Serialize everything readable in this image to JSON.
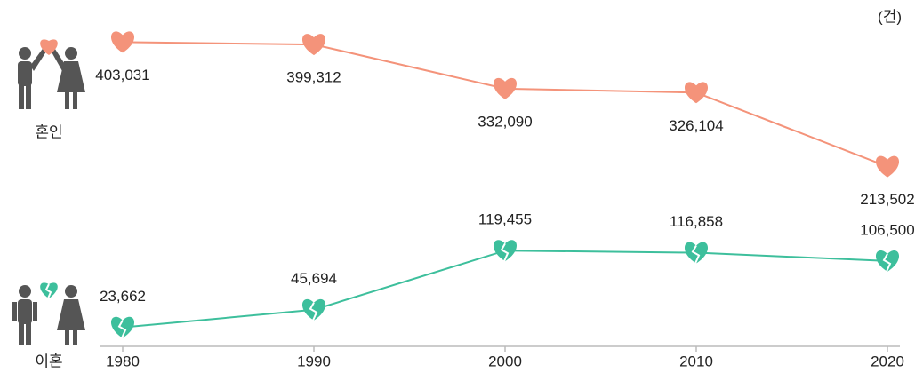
{
  "chart_data": {
    "type": "line",
    "unit": "(건)",
    "x": [
      1980,
      1990,
      2000,
      2010,
      2020
    ],
    "xlim": [
      1980,
      2020
    ],
    "xticks": [
      1980,
      1990,
      2000,
      2010,
      2020
    ],
    "ylim": [
      -60000,
      440000
    ],
    "y2lim": [
      0,
      410000
    ],
    "series": [
      {
        "name": "혼인",
        "color": "#f4937a",
        "values": [
          403031,
          399312,
          332090,
          326104,
          213502
        ],
        "value_labels": [
          "403,031",
          "399,312",
          "332,090",
          "326,104",
          "213,502"
        ]
      },
      {
        "name": "이혼",
        "color": "#3dbf9c",
        "axis": "y2",
        "values": [
          23662,
          45694,
          119455,
          116858,
          106500
        ],
        "value_labels": [
          "23,662",
          "45,694",
          "119,455",
          "116,858",
          "106,500"
        ]
      }
    ]
  }
}
